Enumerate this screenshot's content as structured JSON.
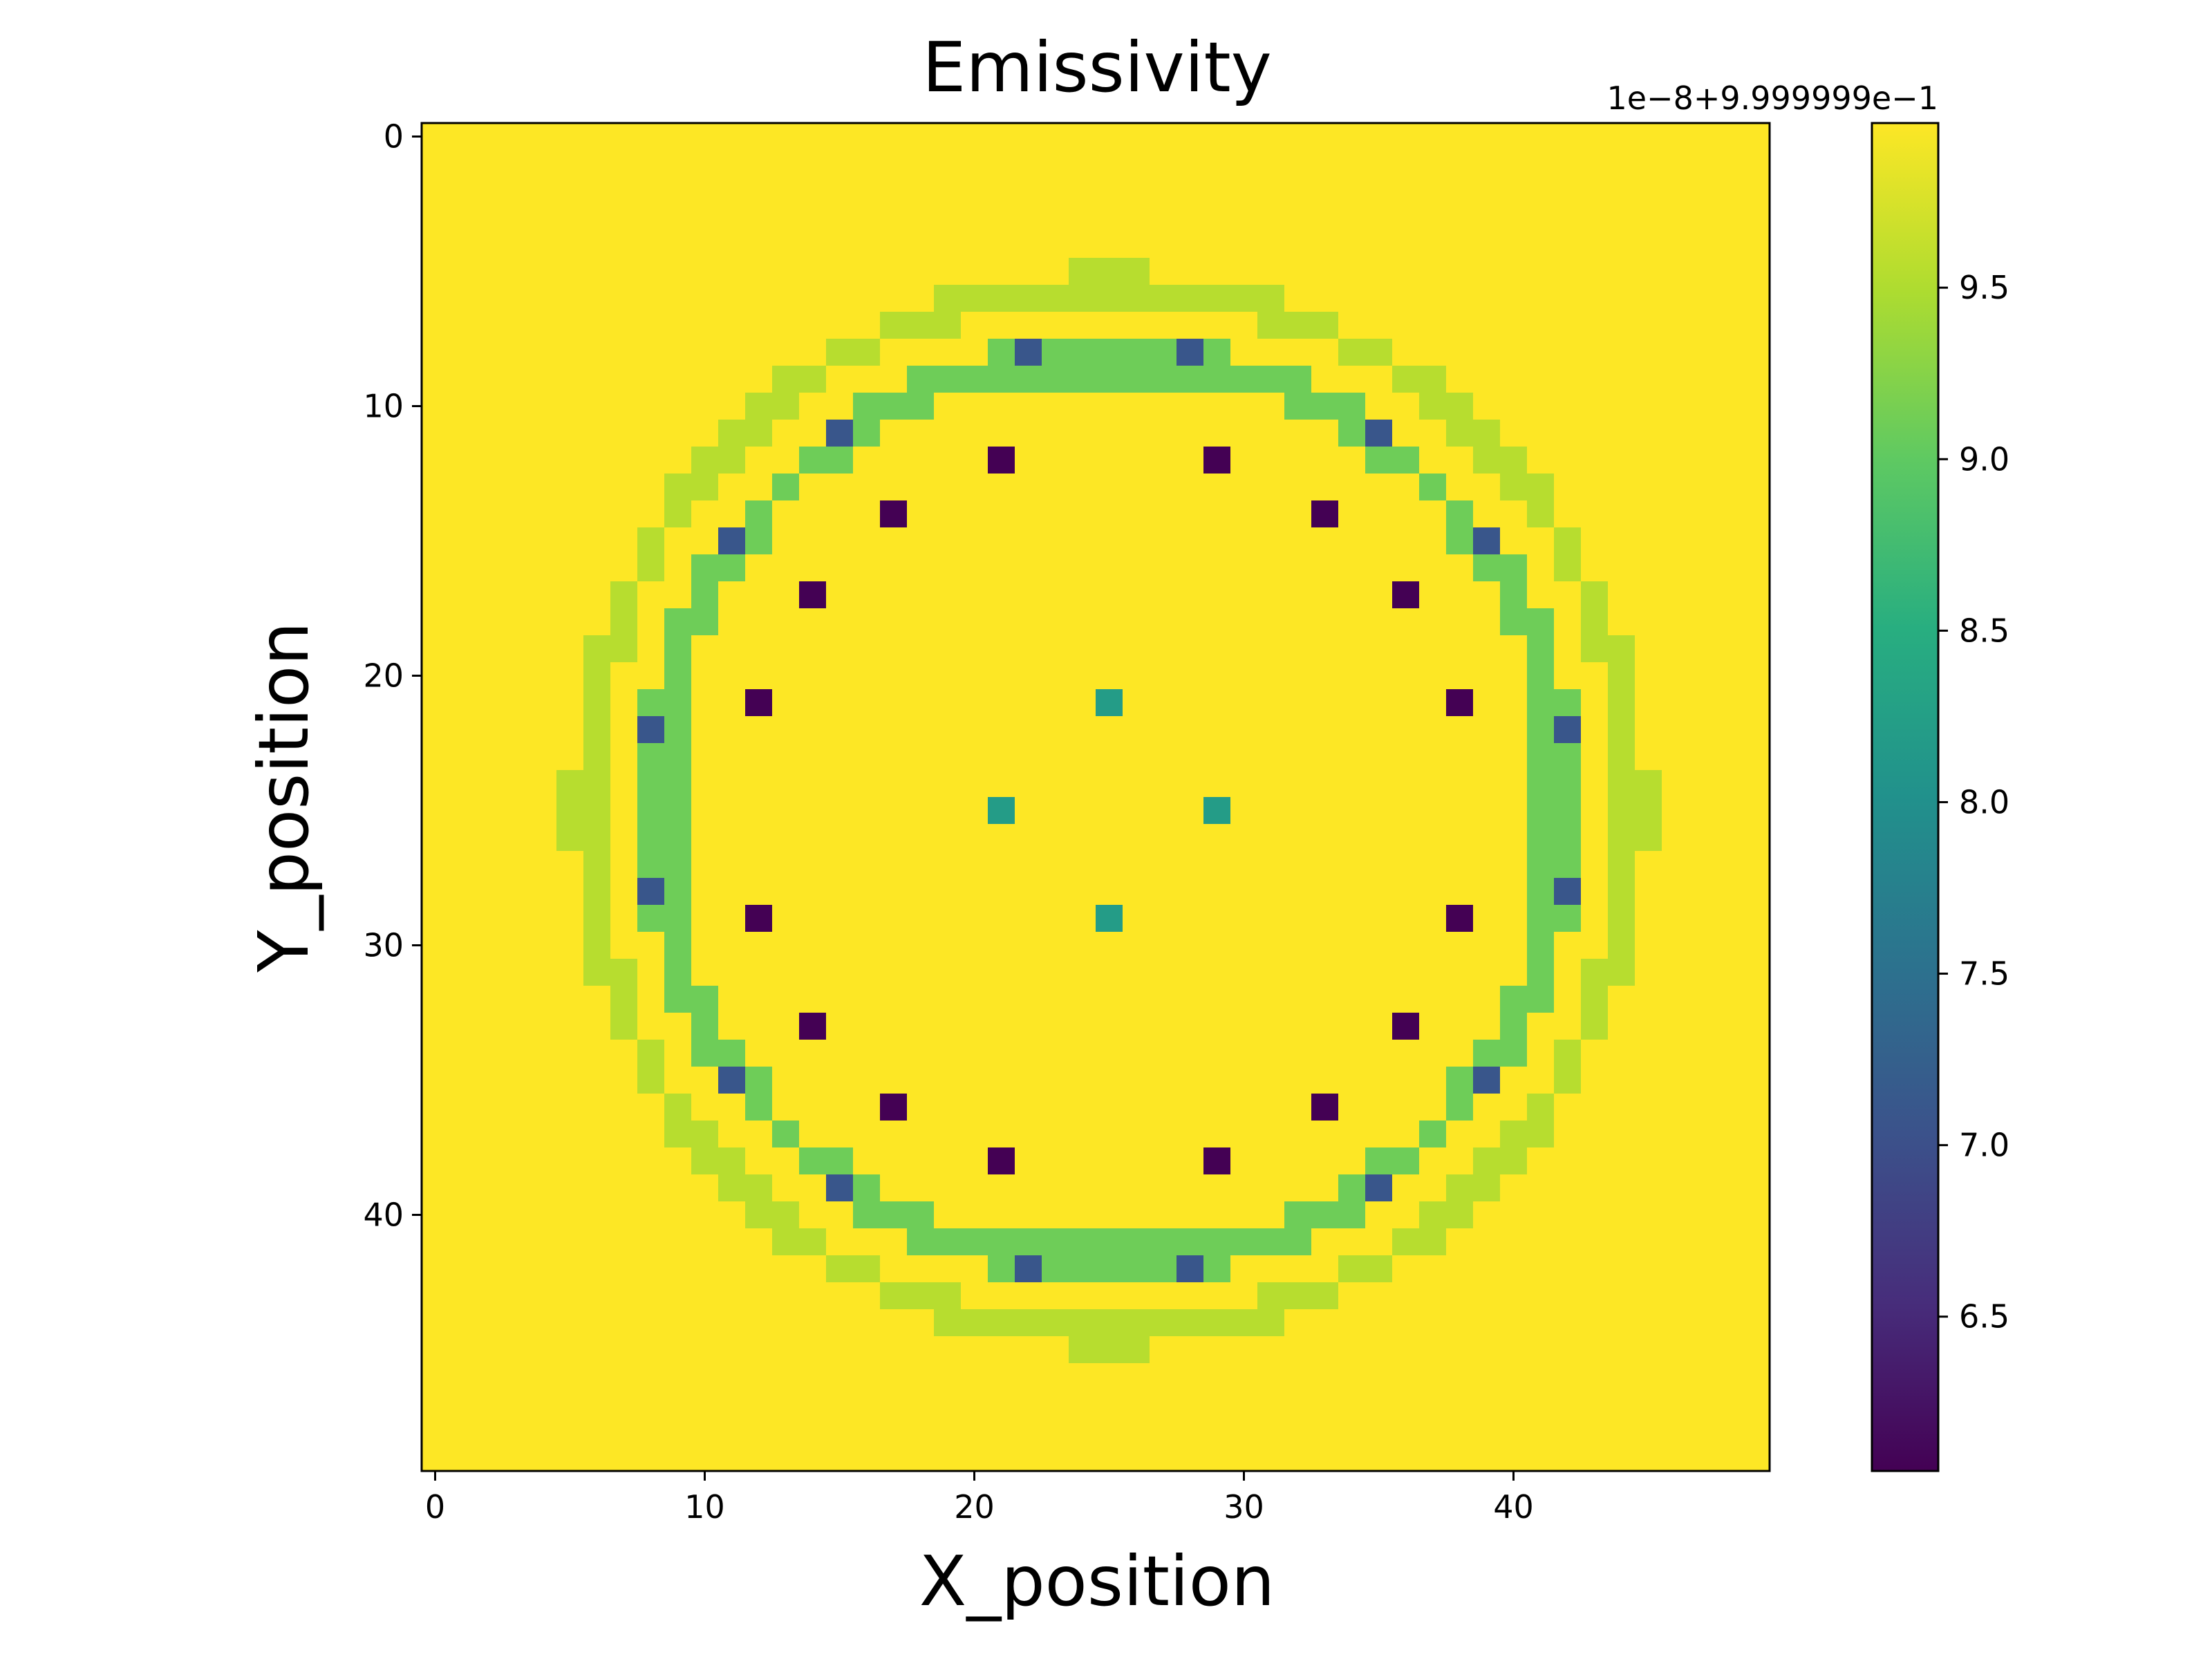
{
  "chart_data": {
    "type": "heatmap",
    "title": "Emissivity",
    "xlabel": "X_position",
    "ylabel": "Y_position",
    "grid_size": [
      50,
      50
    ],
    "x_ticks": [
      0,
      10,
      20,
      30,
      40
    ],
    "y_ticks": [
      0,
      10,
      20,
      30,
      40
    ],
    "y_axis_inverted": true,
    "grid": false,
    "colormap": "viridis",
    "colorbar": {
      "offset_label": "1e−8+9.999999e−1",
      "min": 6.05,
      "max": 9.98,
      "ticks": [
        6.5,
        7.0,
        7.5,
        8.0,
        8.5,
        9.0,
        9.5
      ]
    },
    "background_value": 9.98,
    "features": {
      "dark_points": {
        "value": 6.05,
        "points": [
          [
            21,
            12
          ],
          [
            29,
            12
          ],
          [
            17,
            14
          ],
          [
            33,
            14
          ],
          [
            14,
            17
          ],
          [
            36,
            17
          ],
          [
            12,
            21
          ],
          [
            38,
            21
          ],
          [
            12,
            29
          ],
          [
            38,
            29
          ],
          [
            14,
            33
          ],
          [
            36,
            33
          ],
          [
            17,
            36
          ],
          [
            33,
            36
          ],
          [
            21,
            38
          ],
          [
            29,
            38
          ]
        ]
      },
      "blue_points": {
        "value": 7.1,
        "points": [
          [
            22,
            8
          ],
          [
            28,
            8
          ],
          [
            15,
            11
          ],
          [
            35,
            11
          ],
          [
            11,
            15
          ],
          [
            39,
            15
          ],
          [
            8,
            22
          ],
          [
            42,
            22
          ],
          [
            8,
            28
          ],
          [
            42,
            28
          ],
          [
            11,
            35
          ],
          [
            39,
            35
          ],
          [
            15,
            39
          ],
          [
            35,
            39
          ],
          [
            22,
            42
          ],
          [
            28,
            42
          ]
        ]
      },
      "teal_points": {
        "value": 8.2,
        "points": [
          [
            25,
            21
          ],
          [
            21,
            25
          ],
          [
            29,
            25
          ],
          [
            25,
            29
          ]
        ]
      },
      "green_ring": {
        "value": 9.1,
        "radius": 17,
        "center": [
          25,
          25
        ],
        "segments": [
          [
            [
              22,
              9
            ],
            [
              28,
              9
            ]
          ],
          [
            [
              22,
              41
            ],
            [
              28,
              41
            ]
          ],
          [
            [
              9,
              22
            ],
            [
              9,
              28
            ]
          ],
          [
            [
              41,
              22
            ],
            [
              41,
              28
            ]
          ]
        ]
      },
      "light_ring": {
        "value": 9.55,
        "radius": 19.5,
        "center": [
          25,
          25
        ]
      }
    }
  },
  "colors": {
    "viridis_start": "#440154",
    "viridis_end": "#fde725"
  }
}
